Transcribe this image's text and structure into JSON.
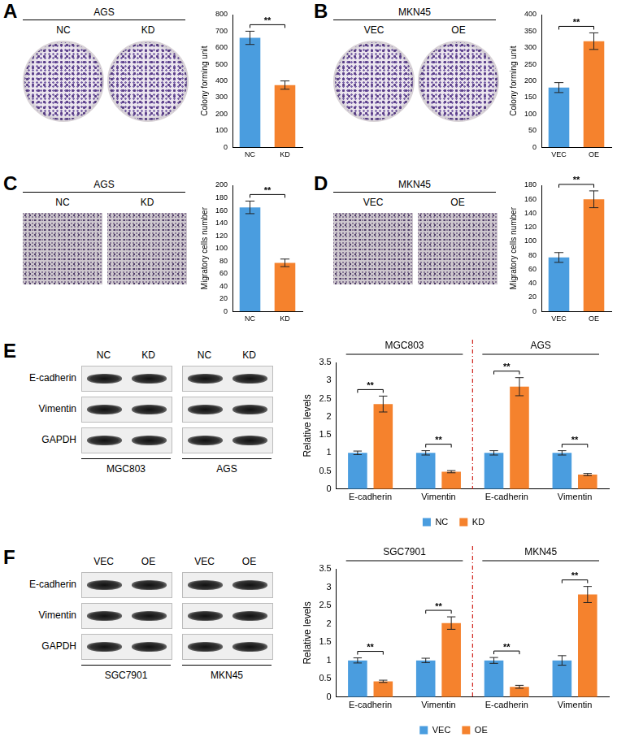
{
  "chart_data": [
    {
      "panel": "A",
      "type": "bar",
      "images": {
        "title": "AGS",
        "labels": [
          "NC",
          "KD"
        ],
        "kind": "plate"
      },
      "y_label": "Colony forming unit",
      "categories": [
        "NC",
        "KD"
      ],
      "values": [
        660,
        375
      ],
      "errors": [
        40,
        25
      ],
      "colors": [
        "#4a9ddf",
        "#f5822d"
      ],
      "ylim": [
        0,
        800
      ],
      "yticks": [
        0,
        100,
        200,
        300,
        400,
        500,
        600,
        700,
        800
      ],
      "grid": false,
      "annotation": "**"
    },
    {
      "panel": "B",
      "type": "bar",
      "images": {
        "title": "MKN45",
        "labels": [
          "VEC",
          "OE"
        ],
        "kind": "plate"
      },
      "y_label": "Colony forming unit",
      "categories": [
        "VEC",
        "OE"
      ],
      "values": [
        180,
        320
      ],
      "errors": [
        15,
        25
      ],
      "colors": [
        "#4a9ddf",
        "#f5822d"
      ],
      "ylim": [
        0,
        400
      ],
      "yticks": [
        0,
        50,
        100,
        150,
        200,
        250,
        300,
        350,
        400
      ],
      "grid": false,
      "annotation": "**"
    },
    {
      "panel": "C",
      "type": "bar",
      "images": {
        "title": "AGS",
        "labels": [
          "NC",
          "KD"
        ],
        "kind": "migration"
      },
      "y_label": "Migratory cells number",
      "categories": [
        "NC",
        "KD"
      ],
      "values": [
        165,
        77
      ],
      "errors": [
        10,
        6
      ],
      "colors": [
        "#4a9ddf",
        "#f5822d"
      ],
      "ylim": [
        0,
        200
      ],
      "yticks": [
        0,
        20,
        40,
        60,
        80,
        100,
        120,
        140,
        160,
        180,
        200
      ],
      "grid": false,
      "annotation": "**"
    },
    {
      "panel": "D",
      "type": "bar",
      "images": {
        "title": "MKN45",
        "labels": [
          "VEC",
          "OE"
        ],
        "kind": "migration"
      },
      "y_label": "Migratory cells number",
      "categories": [
        "VEC",
        "OE"
      ],
      "values": [
        77,
        160
      ],
      "errors": [
        7,
        12
      ],
      "colors": [
        "#4a9ddf",
        "#f5822d"
      ],
      "ylim": [
        0,
        180
      ],
      "yticks": [
        0,
        20,
        40,
        60,
        80,
        100,
        120,
        140,
        160,
        180
      ],
      "grid": false,
      "annotation": "**"
    },
    {
      "panel": "E",
      "type": "bar",
      "blots": {
        "rows": [
          "E-cadherin",
          "Vimentin",
          "GAPDH"
        ],
        "lanes": [
          "NC",
          "KD"
        ],
        "cell_lines": [
          "MGC803",
          "AGS"
        ]
      },
      "y_label": "Relative levels",
      "groups": [
        "MGC803",
        "AGS"
      ],
      "categories": [
        "E-cadherin",
        "Vimentin",
        "E-cadherin",
        "Vimentin"
      ],
      "series": [
        {
          "name": "NC",
          "color": "#4a9ddf",
          "values": [
            1,
            1,
            1,
            1
          ],
          "errors": [
            0.05,
            0.06,
            0.06,
            0.06
          ]
        },
        {
          "name": "KD",
          "color": "#f5822d",
          "values": [
            2.35,
            0.48,
            2.83,
            0.4
          ],
          "errors": [
            0.22,
            0.03,
            0.25,
            0.03
          ]
        }
      ],
      "annotations": [
        "**",
        "**",
        "**",
        "**"
      ],
      "ylim": [
        0,
        3.5
      ],
      "yticks": [
        0,
        0.5,
        1,
        1.5,
        2,
        2.5,
        3,
        3.5
      ],
      "grid": false,
      "legend": "bottom"
    },
    {
      "panel": "F",
      "type": "bar",
      "blots": {
        "rows": [
          "E-cadherin",
          "Vimentin",
          "GAPDH"
        ],
        "lanes": [
          "VEC",
          "OE"
        ],
        "cell_lines": [
          "SGC7901",
          "MKN45"
        ]
      },
      "y_label": "Relative levels",
      "groups": [
        "SGC7901",
        "MKN45"
      ],
      "categories": [
        "E-cadherin",
        "Vimentin",
        "E-cadherin",
        "Vimentin"
      ],
      "series": [
        {
          "name": "VEC",
          "color": "#4a9ddf",
          "values": [
            1,
            1,
            1,
            1
          ],
          "errors": [
            0.07,
            0.06,
            0.08,
            0.13
          ]
        },
        {
          "name": "OE",
          "color": "#f5822d",
          "values": [
            0.43,
            2.02,
            0.28,
            2.8
          ],
          "errors": [
            0.03,
            0.17,
            0.04,
            0.22
          ]
        }
      ],
      "annotations": [
        "**",
        "**",
        "**",
        "**"
      ],
      "ylim": [
        0,
        3.5
      ],
      "yticks": [
        0,
        0.5,
        1,
        1.5,
        2,
        2.5,
        3,
        3.5
      ],
      "grid": false,
      "legend": "bottom"
    }
  ]
}
